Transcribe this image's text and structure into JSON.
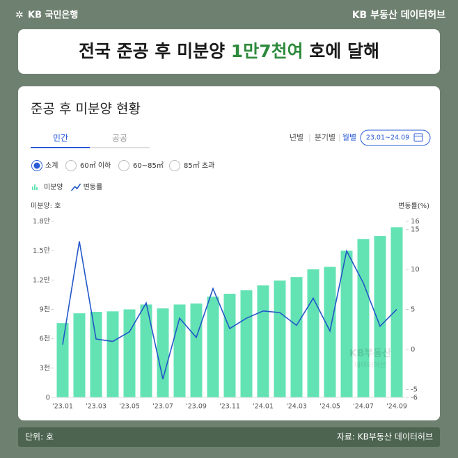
{
  "header": {
    "brand": "KB 국민은행",
    "service": "KB 부동산 데이터허브",
    "title_parts": [
      "전국 준공 후 미분양 ",
      "1만7천여",
      " 호에 달해"
    ]
  },
  "panel": {
    "heading": "준공 후 미분양 현황",
    "tabs": [
      "민간",
      "공공"
    ],
    "periods": [
      "년별",
      "분기별",
      "월별"
    ],
    "date_range": "23.01~24.09",
    "filters": [
      "소계",
      "60㎡ 이하",
      "60~85㎡",
      "85㎡ 초과"
    ]
  },
  "chart_data": {
    "type": "bar",
    "y_label": "미분양: 호",
    "y2_label": "변동률(%)",
    "categories": [
      "'23.01",
      null,
      "'23.03",
      null,
      "'23.05",
      null,
      "'23.07",
      null,
      "'23.09",
      null,
      "'23.11",
      null,
      "'24.01",
      null,
      "'24.03",
      null,
      "'24.05",
      null,
      "'24.07",
      null,
      "'24.09"
    ],
    "series": [
      {
        "name": "미분양",
        "type": "bar",
        "color": "#63e3b4",
        "values": [
          7600,
          8600,
          8750,
          8800,
          9000,
          9500,
          9100,
          9500,
          9600,
          10300,
          10600,
          10950,
          11450,
          11950,
          12300,
          13100,
          13350,
          15000,
          16200,
          16500,
          17400
        ]
      },
      {
        "name": "변동률",
        "type": "line",
        "axis": "y2",
        "color": "#2357c8",
        "values": [
          0.6,
          13.5,
          1.3,
          1.0,
          2.2,
          5.8,
          -3.7,
          3.9,
          1.5,
          7.6,
          2.6,
          3.9,
          4.8,
          4.6,
          3.0,
          6.4,
          2.3,
          12.3,
          8.3,
          2.9,
          5.0
        ]
      }
    ],
    "ylim": [
      0,
      18000
    ],
    "yticks": [
      0,
      {
        "value": 3000,
        "label": "3천"
      },
      {
        "value": 6000,
        "label": "6천"
      },
      {
        "value": 9000,
        "label": "9천"
      },
      {
        "value": 12000,
        "label": "1.2만"
      },
      {
        "value": 15000,
        "label": "1.5만"
      },
      {
        "value": 18000,
        "label": "1.8만"
      }
    ],
    "y2lim": [
      -6,
      16
    ],
    "y2ticks": [
      -6,
      -5,
      0,
      5,
      10,
      15,
      16
    ]
  },
  "watermark": [
    "KB부동산",
    "데이터허브"
  ],
  "footer": {
    "unit": "단위: 호",
    "source": "자료: KB부동산 데이터허브"
  }
}
